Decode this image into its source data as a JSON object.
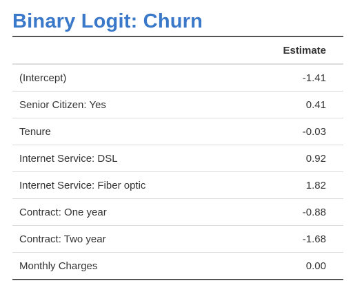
{
  "title": "Binary Logit: Churn",
  "table": {
    "header": {
      "label": "",
      "estimate": "Estimate"
    },
    "rows": [
      {
        "label": "(Intercept)",
        "value": "-1.41",
        "sign": "neg"
      },
      {
        "label": "Senior Citizen: Yes",
        "value": "0.41",
        "sign": "pos"
      },
      {
        "label": "Tenure",
        "value": "-0.03",
        "sign": "neg"
      },
      {
        "label": "Internet Service: DSL",
        "value": "0.92",
        "sign": "pos"
      },
      {
        "label": "Internet Service: Fiber optic",
        "value": "1.82",
        "sign": "pos"
      },
      {
        "label": "Contract: One year",
        "value": "-0.88",
        "sign": "neg"
      },
      {
        "label": "Contract: Two year",
        "value": "-1.68",
        "sign": "neg"
      },
      {
        "label": "Monthly Charges",
        "value": "0.00",
        "sign": "zero"
      }
    ]
  },
  "colors": {
    "title": "#3a78c9",
    "negative": "#ff2a2a",
    "positive": "#2a2aff",
    "neutral": "#555555"
  }
}
